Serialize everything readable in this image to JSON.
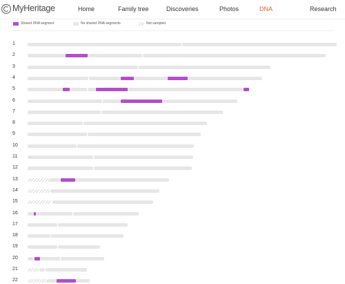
{
  "brand": {
    "name": "MyHeritage"
  },
  "nav": {
    "items": [
      {
        "label": "Home",
        "active": false
      },
      {
        "label": "Family tree",
        "active": false
      },
      {
        "label": "Discoveries",
        "active": false
      },
      {
        "label": "Photos",
        "active": false
      },
      {
        "label": "DNA",
        "active": true
      },
      {
        "label": "Research",
        "active": false
      }
    ]
  },
  "legend": {
    "shared": "Shared DNA segment",
    "none": "No shared DNA segments",
    "not_sampled": "Not sampled"
  },
  "colors": {
    "shared": "#b24fc8",
    "none": "#e6e6e6",
    "active_nav": "#e2622b"
  },
  "chromosomes": [
    {
      "label": "1",
      "segments": [
        [
          0,
          223,
          "n"
        ],
        [
          224,
          448,
          "n"
        ]
      ]
    },
    {
      "label": "2",
      "segments": [
        [
          0,
          55,
          "n"
        ],
        [
          55,
          87,
          "s"
        ],
        [
          87,
          166,
          "n"
        ],
        [
          167,
          432,
          "n"
        ]
      ]
    },
    {
      "label": "3",
      "segments": [
        [
          0,
          160,
          "n"
        ],
        [
          161,
          352,
          "n"
        ]
      ]
    },
    {
      "label": "4",
      "segments": [
        [
          0,
          88,
          "n"
        ],
        [
          89,
          135,
          "n"
        ],
        [
          135,
          154,
          "s"
        ],
        [
          154,
          203,
          "n"
        ],
        [
          203,
          232,
          "s"
        ],
        [
          232,
          340,
          "n"
        ]
      ]
    },
    {
      "label": "5",
      "segments": [
        [
          0,
          51,
          "n"
        ],
        [
          51,
          61,
          "s"
        ],
        [
          61,
          86,
          "n"
        ],
        [
          87,
          99,
          "n"
        ],
        [
          99,
          145,
          "s"
        ],
        [
          145,
          313,
          "n"
        ],
        [
          313,
          321,
          "s"
        ]
      ]
    },
    {
      "label": "6",
      "segments": [
        [
          0,
          108,
          "n"
        ],
        [
          109,
          135,
          "n"
        ],
        [
          135,
          195,
          "s"
        ],
        [
          195,
          304,
          "n"
        ]
      ]
    },
    {
      "label": "7",
      "segments": [
        [
          0,
          106,
          "n"
        ],
        [
          107,
          283,
          "n"
        ]
      ]
    },
    {
      "label": "8",
      "segments": [
        [
          0,
          80,
          "n"
        ],
        [
          81,
          260,
          "n"
        ]
      ]
    },
    {
      "label": "9",
      "segments": [
        [
          0,
          86,
          "n"
        ],
        [
          87,
          251,
          "n"
        ]
      ]
    },
    {
      "label": "10",
      "segments": [
        [
          0,
          71,
          "n"
        ],
        [
          72,
          241,
          "n"
        ]
      ]
    },
    {
      "label": "11",
      "segments": [
        [
          0,
          95,
          "n"
        ],
        [
          96,
          240,
          "n"
        ]
      ]
    },
    {
      "label": "12",
      "segments": [
        [
          0,
          95,
          "n"
        ],
        [
          96,
          238,
          "n"
        ]
      ]
    },
    {
      "label": "13",
      "segments": [
        [
          0,
          32,
          "x"
        ],
        [
          32,
          48,
          "n"
        ],
        [
          48,
          69,
          "s"
        ],
        [
          69,
          205,
          "n"
        ]
      ]
    },
    {
      "label": "14",
      "segments": [
        [
          0,
          32,
          "x"
        ],
        [
          33,
          191,
          "n"
        ]
      ]
    },
    {
      "label": "15",
      "segments": [
        [
          0,
          35,
          "x"
        ],
        [
          36,
          182,
          "n"
        ]
      ]
    },
    {
      "label": "16",
      "segments": [
        [
          0,
          9,
          "n"
        ],
        [
          9,
          12,
          "s"
        ],
        [
          12,
          65,
          "n"
        ],
        [
          66,
          161,
          "n"
        ]
      ]
    },
    {
      "label": "17",
      "segments": [
        [
          0,
          43,
          "n"
        ],
        [
          44,
          145,
          "n"
        ]
      ]
    },
    {
      "label": "18",
      "segments": [
        [
          0,
          33,
          "n"
        ],
        [
          34,
          139,
          "n"
        ]
      ]
    },
    {
      "label": "19",
      "segments": [
        [
          0,
          43,
          "n"
        ],
        [
          44,
          105,
          "n"
        ]
      ]
    },
    {
      "label": "20",
      "segments": [
        [
          0,
          10,
          "n"
        ],
        [
          10,
          18,
          "s"
        ],
        [
          18,
          47,
          "n"
        ],
        [
          48,
          111,
          "n"
        ]
      ]
    },
    {
      "label": "21",
      "segments": [
        [
          0,
          16,
          "x"
        ],
        [
          17,
          25,
          "n"
        ],
        [
          26,
          86,
          "n"
        ]
      ]
    },
    {
      "label": "22",
      "segments": [
        [
          0,
          28,
          "x"
        ],
        [
          28,
          42,
          "n"
        ],
        [
          42,
          70,
          "s"
        ],
        [
          70,
          90,
          "n"
        ]
      ]
    }
  ]
}
